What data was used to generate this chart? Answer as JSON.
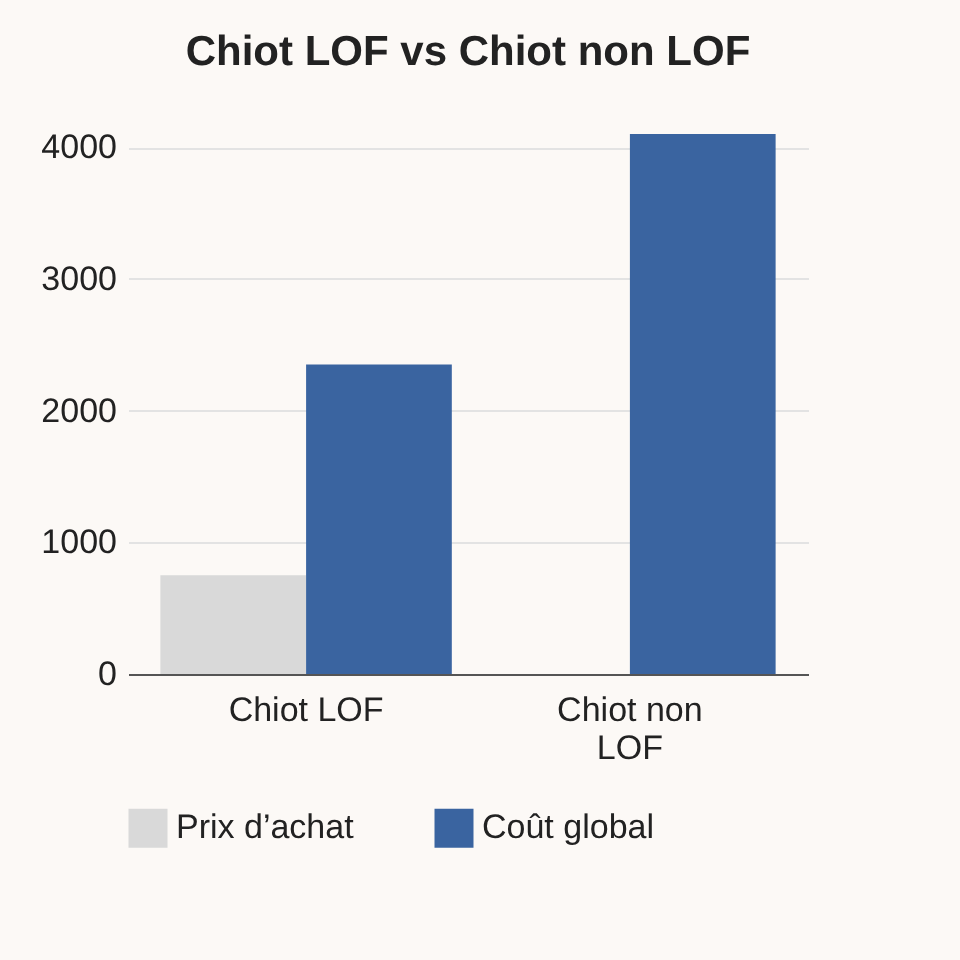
{
  "chart_data": {
    "type": "bar",
    "title": "Chiot LOF vs Chiot non LOF",
    "categories": [
      "Chiot LOF",
      "Chiot non LOF"
    ],
    "series": [
      {
        "name": "Prix d’achat",
        "color": "#d9d9d9",
        "values": [
          750,
          null
        ]
      },
      {
        "name": "Coût global",
        "color": "#3a64a0",
        "values": [
          2350,
          4100
        ]
      }
    ],
    "ylim": [
      0,
      4100
    ],
    "yticks": [
      0,
      1000,
      2000,
      3000,
      4000
    ],
    "grid": "y",
    "legend": "bottom"
  }
}
